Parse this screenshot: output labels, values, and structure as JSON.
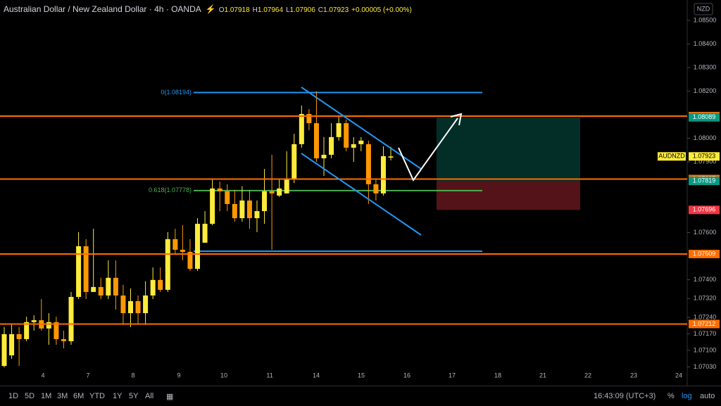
{
  "chart_data": {
    "type": "candlestick",
    "title": "Australian Dollar / New Zealand Dollar · 4h · OANDA",
    "symbol": "AUDNZD",
    "currency": "NZD",
    "ohlc_labels": [
      "O",
      "H",
      "L",
      "C"
    ],
    "change": "+0.00005 (+0.00%)",
    "grid": false,
    "up_color": "#ffeb3b",
    "down_color": "#ff9800",
    "xlim": [
      -0.568,
      91.87
    ],
    "xticks": [
      {
        "value": 5.21,
        "label": "4"
      },
      {
        "value": 11.27,
        "label": "7"
      },
      {
        "value": 17.33,
        "label": "8"
      },
      {
        "value": 23.49,
        "label": "9"
      },
      {
        "value": 29.55,
        "label": "10"
      },
      {
        "value": 35.71,
        "label": "11"
      },
      {
        "value": 41.96,
        "label": "14"
      },
      {
        "value": 48.02,
        "label": "15"
      },
      {
        "value": 54.18,
        "label": "16"
      },
      {
        "value": 60.24,
        "label": "17"
      },
      {
        "value": 66.39,
        "label": "18"
      },
      {
        "value": 72.46,
        "label": "21"
      },
      {
        "value": 78.52,
        "label": "22"
      },
      {
        "value": 84.68,
        "label": "23"
      },
      {
        "value": 90.74,
        "label": "24"
      }
    ],
    "ylim": [
      1.069746,
      1.085866
    ],
    "yticks": [
      {
        "value": 1.085,
        "label": "1.08500"
      },
      {
        "value": 1.084,
        "label": "1.08400"
      },
      {
        "value": 1.083,
        "label": "1.08300"
      },
      {
        "value": 1.082,
        "label": "1.08200"
      },
      {
        "value": 1.08,
        "label": "1.08000"
      },
      {
        "value": 1.079,
        "label": "1.07900"
      },
      {
        "value": 1.076,
        "label": "1.07600"
      },
      {
        "value": 1.074,
        "label": "1.07400"
      },
      {
        "value": 1.0732,
        "label": "1.07320"
      },
      {
        "value": 1.0724,
        "label": "1.07240"
      },
      {
        "value": 1.0717,
        "label": "1.07170"
      },
      {
        "value": 1.071,
        "label": "1.07100"
      },
      {
        "value": 1.0703,
        "label": "1.07030"
      }
    ],
    "open": [
      1.07034,
      1.07079,
      1.07169,
      1.07148,
      1.0722,
      1.07228,
      1.07193,
      1.0722,
      1.07148,
      1.07139,
      1.07327,
      1.07542,
      1.07348,
      1.07369,
      1.07333,
      1.07408,
      1.07333,
      1.07258,
      1.07309,
      1.07258,
      1.07333,
      1.07399,
      1.07357,
      1.07572,
      1.07527,
      1.07518,
      1.07446,
      1.07557,
      1.07637,
      1.07787,
      1.07775,
      1.07721,
      1.07661,
      1.07736,
      1.07661,
      1.07691,
      1.07775,
      1.07757,
      1.07766,
      1.07825,
      1.07975,
      1.08103,
      1.08064,
      1.07915,
      1.0793,
      1.08005,
      1.08064,
      1.0796,
      1.07975,
      1.07975,
      1.07805,
      1.07766,
      1.07918
    ],
    "high": [
      1.07199,
      1.07214,
      1.07199,
      1.07243,
      1.07249,
      1.07318,
      1.07258,
      1.07243,
      1.07184,
      1.07348,
      1.07602,
      1.07572,
      1.07616,
      1.07408,
      1.07482,
      1.07482,
      1.07378,
      1.07363,
      1.07333,
      1.07393,
      1.07452,
      1.07452,
      1.07602,
      1.07616,
      1.07631,
      1.07572,
      1.07661,
      1.07691,
      1.07825,
      1.07816,
      1.07805,
      1.07781,
      1.07796,
      1.07781,
      1.07736,
      1.0787,
      1.0793,
      1.07825,
      1.07945,
      1.08019,
      1.08139,
      1.08124,
      1.08199,
      1.08005,
      1.08064,
      1.08094,
      1.08079,
      1.08005,
      1.08005,
      1.0799,
      1.07825,
      1.07966,
      1.07964
    ],
    "low": [
      1.07028,
      1.07064,
      1.07034,
      1.07139,
      1.07184,
      1.07184,
      1.07124,
      1.07124,
      1.07109,
      1.07124,
      1.07318,
      1.07318,
      1.07348,
      1.07318,
      1.07318,
      1.07273,
      1.07208,
      1.07199,
      1.07214,
      1.07208,
      1.07318,
      1.07348,
      1.07348,
      1.07512,
      1.07482,
      1.07437,
      1.07437,
      1.07557,
      1.07631,
      1.07691,
      1.07691,
      1.07646,
      1.07646,
      1.07616,
      1.07602,
      1.07637,
      1.07527,
      1.07751,
      1.07766,
      1.0781,
      1.0796,
      1.08034,
      1.079,
      1.0784,
      1.07915,
      1.0799,
      1.07945,
      1.079,
      1.07945,
      1.07721,
      1.07736,
      1.07757,
      1.07906
    ],
    "close": [
      1.07169,
      1.07169,
      1.07148,
      1.0722,
      1.07228,
      1.07193,
      1.0722,
      1.07148,
      1.07139,
      1.07327,
      1.07542,
      1.07348,
      1.07369,
      1.07333,
      1.07408,
      1.07333,
      1.07258,
      1.07309,
      1.07258,
      1.07333,
      1.07399,
      1.07357,
      1.07572,
      1.07527,
      1.07518,
      1.07446,
      1.07637,
      1.07637,
      1.07787,
      1.07775,
      1.07721,
      1.07661,
      1.07736,
      1.07661,
      1.07691,
      1.07775,
      1.07766,
      1.07787,
      1.07825,
      1.07975,
      1.08103,
      1.08064,
      1.07915,
      1.0793,
      1.08005,
      1.08064,
      1.0796,
      1.07975,
      1.0799,
      1.07805,
      1.07766,
      1.07924,
      1.07923
    ],
    "levels": {
      "color": "#ff6d00",
      "values": [
        1.08094,
        1.07827,
        1.07509,
        1.07212
      ]
    },
    "fib": [
      {
        "label": "0(1.08194)",
        "value": 1.08194,
        "color": "#2196f3"
      },
      {
        "label": "0.618(1.07778)",
        "value": 1.07778,
        "color": "#4caf50"
      },
      {
        "label": null,
        "value": 1.07521,
        "color": "#2196f3"
      }
    ],
    "position": {
      "target": 1.08089,
      "entry": 1.07819,
      "stop": 1.07696,
      "profit_color": "#089981",
      "loss_color": "#f23645"
    },
    "timeframes": [
      "1D",
      "5D",
      "1M",
      "3M",
      "6M",
      "YTD",
      "1Y",
      "5Y",
      "All"
    ],
    "timestamp": "16:43:09 (UTC+3)",
    "scale_modes": [
      "%",
      "log",
      "auto"
    ]
  }
}
